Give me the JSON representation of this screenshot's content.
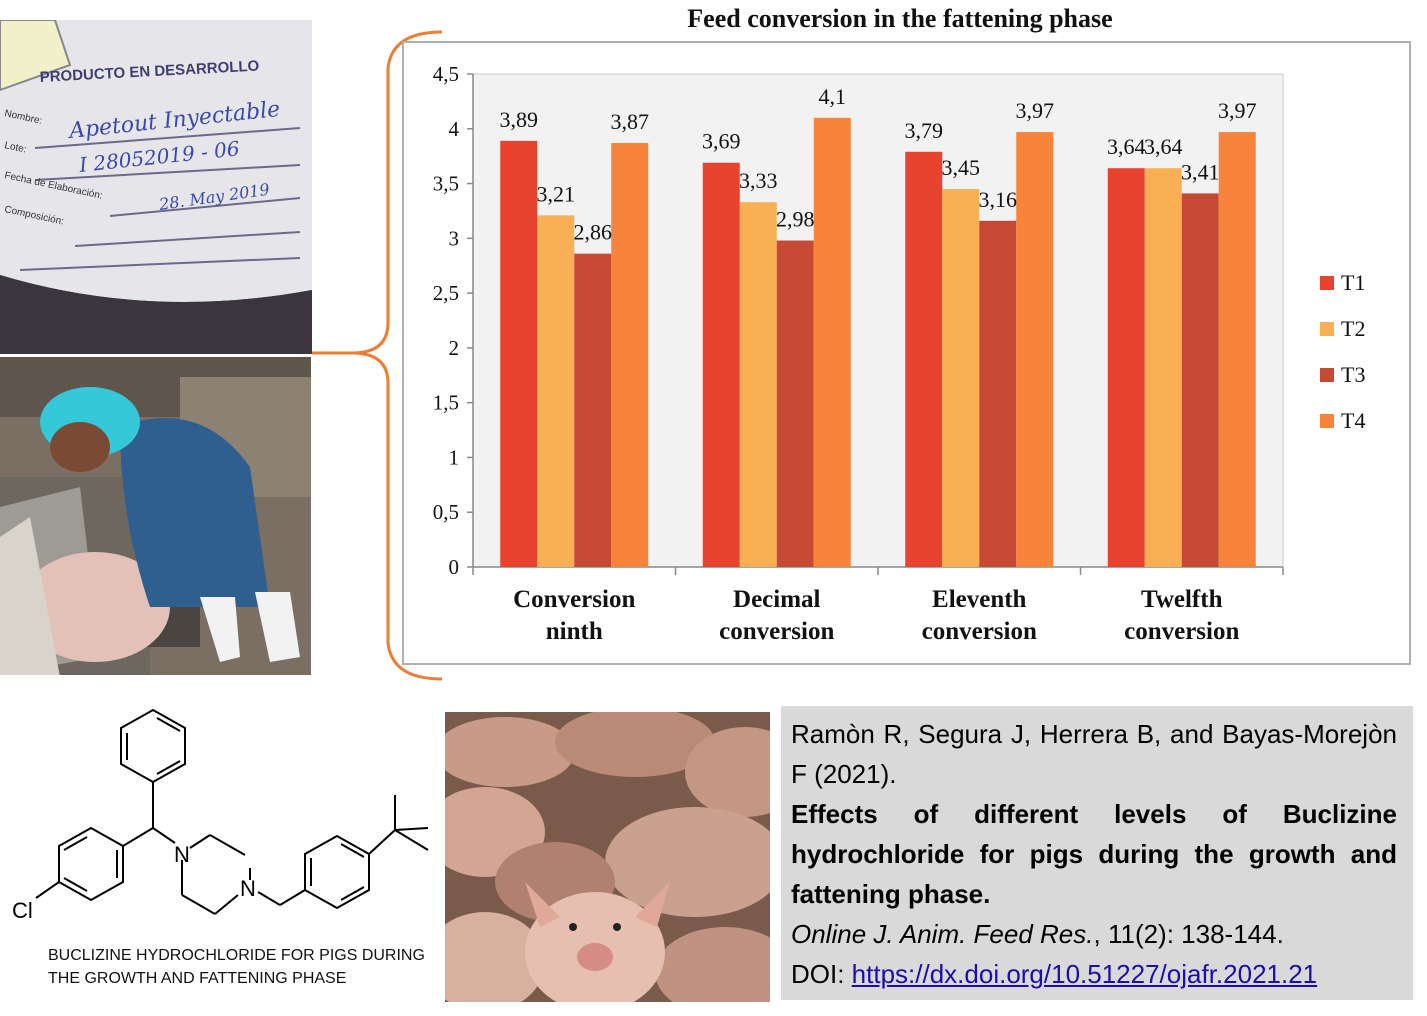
{
  "chart_data": {
    "type": "bar",
    "title": "Feed conversion in the fattening phase",
    "xlabel": "",
    "ylabel": "",
    "ylim": [
      0,
      4.5
    ],
    "yticks": [
      "0",
      "0,5",
      "1",
      "1,5",
      "2",
      "2,5",
      "3",
      "3,5",
      "4",
      "4,5"
    ],
    "grid": false,
    "legend_position": "right",
    "categories": [
      [
        "Conversion",
        "ninth"
      ],
      [
        "Decimal",
        "conversion"
      ],
      [
        "Eleventh",
        "conversion"
      ],
      [
        "Twelfth",
        "conversion"
      ]
    ],
    "series": [
      {
        "name": "T1",
        "color": "#e8432e",
        "values": [
          3.89,
          3.69,
          3.79,
          3.64
        ],
        "labels": [
          "3,89",
          "3,69",
          "3,79",
          "3,64"
        ]
      },
      {
        "name": "T2",
        "color": "#f9b055",
        "values": [
          3.21,
          3.33,
          3.45,
          3.64
        ],
        "labels": [
          "3,21",
          "3,33",
          "3,45",
          "3,64"
        ]
      },
      {
        "name": "T3",
        "color": "#c64a33",
        "values": [
          2.86,
          2.98,
          3.16,
          3.41
        ],
        "labels": [
          "2,86",
          "2,98",
          "3,16",
          "3,41"
        ]
      },
      {
        "name": "T4",
        "color": "#f7843a",
        "values": [
          3.87,
          4.1,
          3.97,
          3.97
        ],
        "labels": [
          "3,87",
          "4,1",
          "3,97",
          "3,97"
        ]
      }
    ]
  },
  "label_photo": {
    "header": "PRODUCTO EN DESARROLLO",
    "fields": [
      "Nombre:",
      "Lote:",
      "Fecha de Elaboración:",
      "Composición:"
    ],
    "handwritten": [
      "Apetout Inyectable",
      "I 28052019 - 06",
      "28. May 2019"
    ]
  },
  "structure": {
    "caption": "BUCLIZINE HYDROCHLORIDE FOR PIGS DURING THE GROWTH AND FATTENING PHASE",
    "atoms": {
      "n1": "N",
      "n2": "N",
      "cl": "Cl"
    }
  },
  "citation": {
    "authors": "Ramòn R, Segura J, Herrera B, and Bayas-Morejòn F (2021).",
    "title": "Effects of different levels of Buclizine hydrochloride for pigs during the growth and fattening phase.",
    "journal": "Online J. Anim. Feed Res.",
    "volume": ", 11(2): 138-144.",
    "doi_prefix": "DOI: ",
    "doi_url": "https://dx.doi.org/10.51227/ojafr.2021.21"
  }
}
